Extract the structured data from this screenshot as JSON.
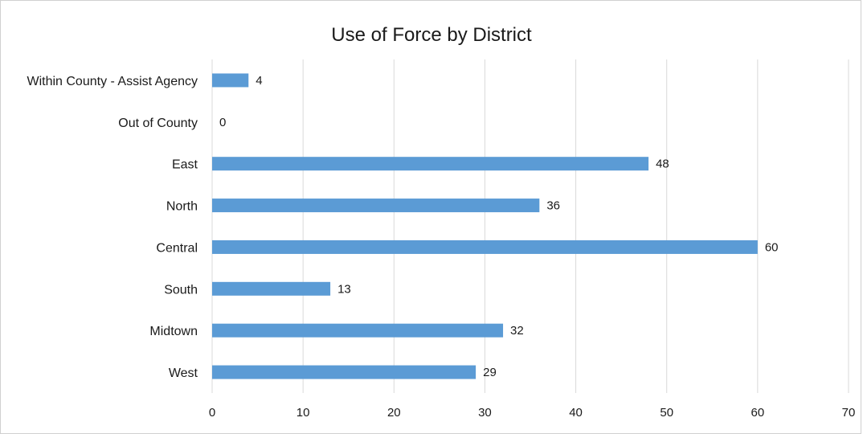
{
  "chart_data": {
    "type": "bar",
    "orientation": "horizontal",
    "title": "Use of Force by District",
    "xlabel": "",
    "ylabel": "",
    "categories": [
      "Within County - Assist Agency",
      "Out of County",
      "East",
      "North",
      "Central",
      "South",
      "Midtown",
      "West"
    ],
    "values": [
      4,
      0,
      48,
      36,
      60,
      13,
      32,
      29
    ],
    "xlim": [
      0,
      70
    ],
    "x_ticks": [
      0,
      10,
      20,
      30,
      40,
      50,
      60,
      70
    ],
    "grid": true,
    "legend": "none",
    "bar_color": "#5B9BD5",
    "grid_color": "#d9d9d9"
  }
}
